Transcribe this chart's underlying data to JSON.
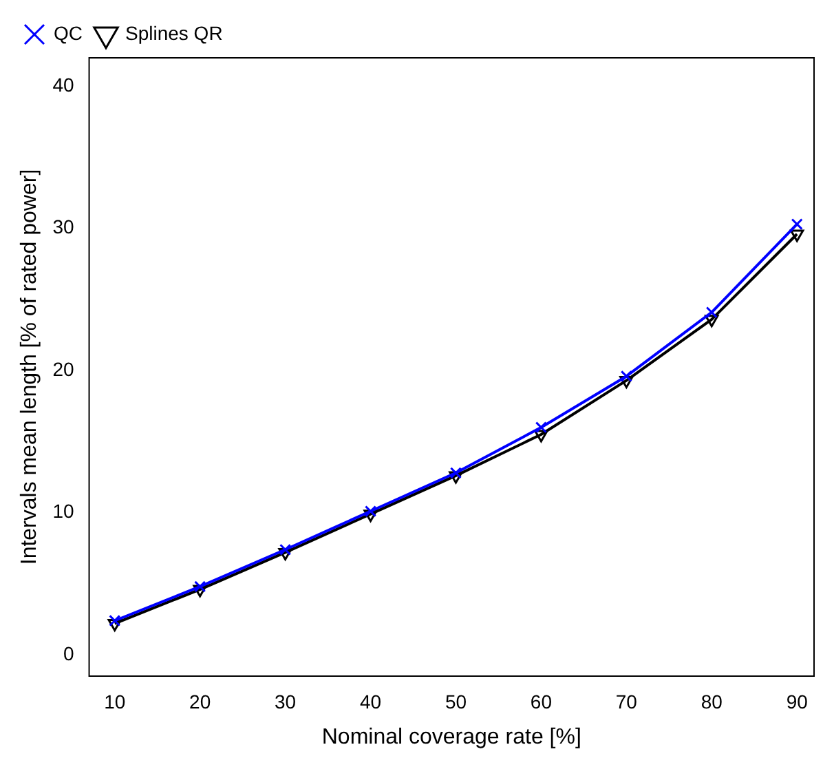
{
  "chart_data": {
    "type": "line",
    "xlabel": "Nominal coverage rate [%]",
    "ylabel": "Intervals mean length [% of rated power]",
    "x": [
      10,
      20,
      30,
      40,
      50,
      60,
      70,
      80,
      90
    ],
    "series": [
      {
        "name": "QC",
        "color": "#0000ff",
        "marker": "cross",
        "values": [
          2.4,
          4.8,
          7.4,
          10.1,
          12.8,
          16.0,
          19.6,
          24.1,
          30.3
        ]
      },
      {
        "name": "Splines QR",
        "color": "#000000",
        "marker": "triangle",
        "values": [
          2.2,
          4.6,
          7.2,
          9.9,
          12.6,
          15.5,
          19.3,
          23.6,
          29.6
        ]
      }
    ],
    "xlim": [
      7,
      92
    ],
    "xticks": [
      10,
      20,
      30,
      40,
      50,
      60,
      70,
      80,
      90
    ],
    "ylim": [
      -1.5,
      42
    ],
    "yticks": [
      0,
      10,
      20,
      30,
      40
    ],
    "grid": false,
    "legend": "top left",
    "line_style": "solid"
  }
}
